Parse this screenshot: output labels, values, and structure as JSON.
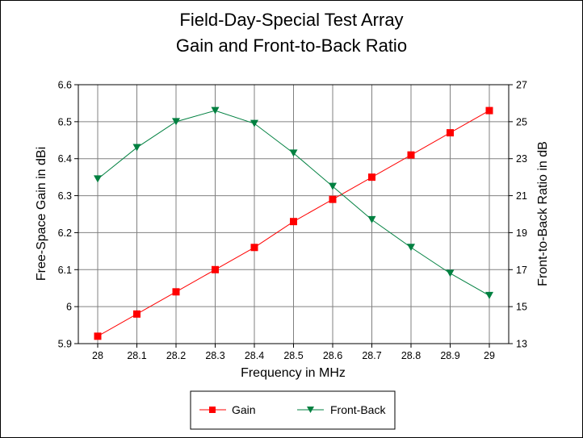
{
  "chart_data": {
    "type": "line",
    "title": "Field-Day-Special Test Array",
    "subtitle": "Gain and Front-to-Back Ratio",
    "xlabel": "Frequency in MHz",
    "ylabel": "Free-Space Gain in dBi",
    "y2label": "Front-to-Back Ratio in dB",
    "x": [
      "28",
      "28.1",
      "28.2",
      "28.3",
      "28.4",
      "28.5",
      "28.6",
      "28.7",
      "28.8",
      "28.9",
      "29"
    ],
    "ylim": [
      5.9,
      6.6
    ],
    "yticks": [
      "5.9",
      "6",
      "6.1",
      "6.2",
      "6.3",
      "6.4",
      "6.5",
      "6.6"
    ],
    "y2lim": [
      13,
      27
    ],
    "y2ticks": [
      "13",
      "15",
      "17",
      "19",
      "21",
      "23",
      "25",
      "27"
    ],
    "grid": true,
    "legend_position": "bottom-center",
    "series": [
      {
        "name": "Gain",
        "axis": "left",
        "color": "#ff0000",
        "marker": "square",
        "values": [
          5.92,
          5.98,
          6.04,
          6.1,
          6.16,
          6.23,
          6.29,
          6.35,
          6.41,
          6.47,
          6.53
        ]
      },
      {
        "name": "Front-Back",
        "axis": "right",
        "color": "#008040",
        "marker": "triangle-down",
        "values": [
          21.9,
          23.6,
          25.0,
          25.6,
          24.9,
          23.3,
          21.5,
          19.7,
          18.2,
          16.8,
          15.6
        ]
      }
    ]
  }
}
